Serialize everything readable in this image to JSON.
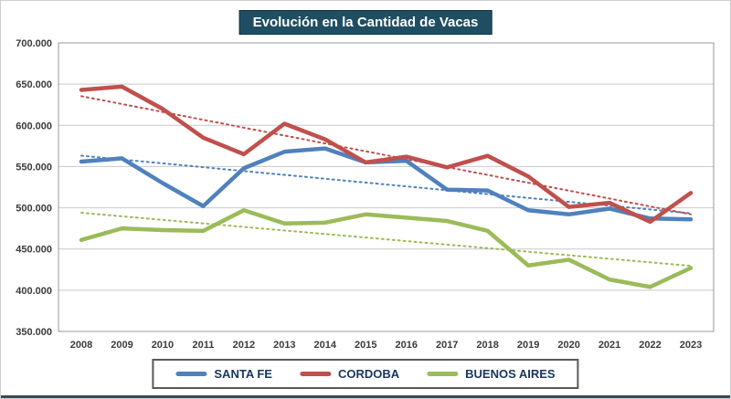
{
  "colors": {
    "title_bg": "#1F4E63",
    "grid": "#c9c9c9",
    "plot_border": "#9a9a9a"
  },
  "chart_data": {
    "type": "line",
    "title": "Evolución en la Cantidad de Vacas",
    "categories": [
      "2008",
      "2009",
      "2010",
      "2011",
      "2012",
      "2013",
      "2014",
      "2015",
      "2016",
      "2017",
      "2018",
      "2019",
      "2020",
      "2021",
      "2022",
      "2023"
    ],
    "series": [
      {
        "name": "SANTA FE",
        "color": "#4F81BD",
        "values": [
          556000,
          560000,
          530000,
          502000,
          548000,
          568000,
          572000,
          555000,
          557000,
          522000,
          521000,
          497000,
          492000,
          499000,
          487000,
          486000
        ],
        "trendline": true
      },
      {
        "name": "CORDOBA",
        "color": "#C0504D",
        "values": [
          643000,
          647000,
          620000,
          585000,
          565000,
          602000,
          583000,
          555000,
          562000,
          549000,
          563000,
          538000,
          501000,
          506000,
          483000,
          518000
        ],
        "trendline": true
      },
      {
        "name": "BUENOS AIRES",
        "color": "#9BBB59",
        "values": [
          461000,
          475000,
          473000,
          472000,
          497000,
          481000,
          482000,
          492000,
          488000,
          484000,
          472000,
          430000,
          437000,
          413000,
          404000,
          427000
        ],
        "trendline": true
      }
    ],
    "xlabel": "",
    "ylabel": "",
    "ylim": [
      350000,
      700000
    ],
    "ytick_step": 50000,
    "grid": "horizontal",
    "legend_position": "bottom"
  }
}
